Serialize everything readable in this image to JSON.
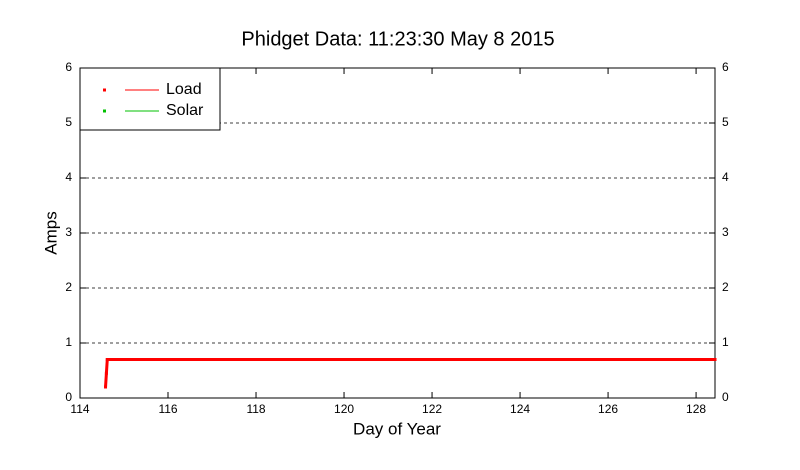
{
  "chart_data": {
    "type": "line",
    "title": "Phidget Data: 11:23:30 May 8 2015",
    "x_label": "Day of Year",
    "y_label": "Amps",
    "series": [
      {
        "name": "Load",
        "color": "#ff0000",
        "x": [
          114.58,
          114.6,
          114.62,
          128.43
        ],
        "values": [
          0.2,
          0.45,
          0.7,
          0.7
        ]
      },
      {
        "name": "Solar",
        "color": "#00c000",
        "x": [],
        "values": []
      }
    ],
    "xlim": [
      114,
      128.43
    ],
    "xticks": [
      114,
      116,
      118,
      120,
      122,
      124,
      126,
      128
    ],
    "ylim": [
      0,
      6
    ],
    "yticks": [
      0,
      1,
      2,
      3,
      4,
      5,
      6
    ],
    "grid": true,
    "legend": "upper left"
  }
}
